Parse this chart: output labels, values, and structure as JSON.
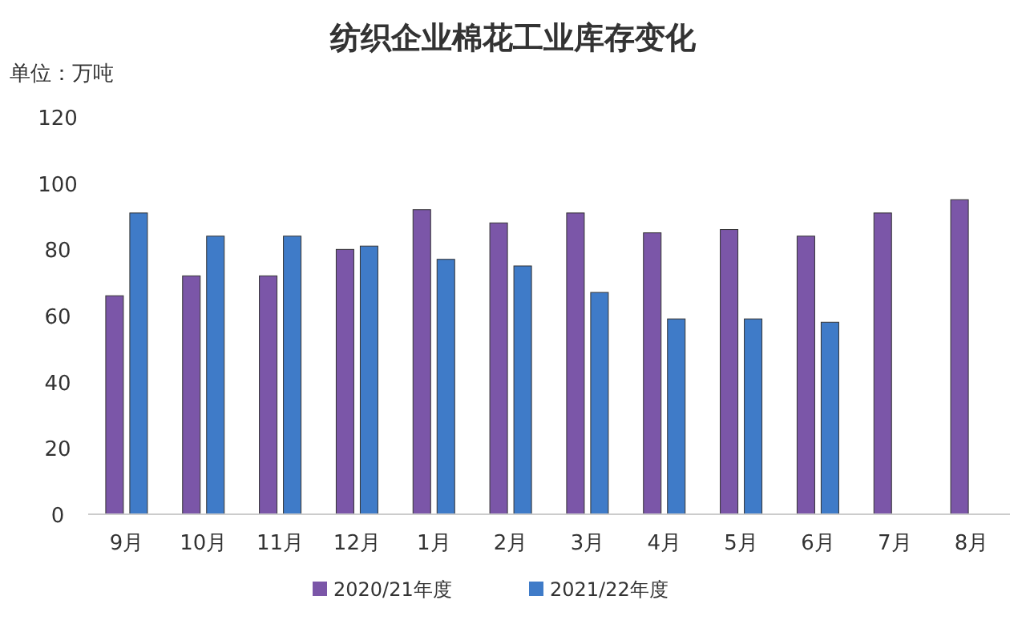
{
  "chart_data": {
    "type": "bar",
    "title": "纺织企业棉花工业库存变化",
    "ylabel": "单位：万吨",
    "categories": [
      "9月",
      "10月",
      "11月",
      "12月",
      "1月",
      "2月",
      "3月",
      "4月",
      "5月",
      "6月",
      "7月",
      "8月"
    ],
    "series": [
      {
        "name": "2020/21年度",
        "color": "#7b56a8",
        "values": [
          66,
          72,
          72,
          80,
          92,
          88,
          91,
          85,
          86,
          84,
          91,
          95
        ]
      },
      {
        "name": "2021/22年度",
        "color": "#3f7bc8",
        "values": [
          91,
          84,
          84,
          81,
          77,
          75,
          67,
          59,
          59,
          58,
          null,
          null
        ]
      }
    ],
    "ylim": [
      0,
      120
    ],
    "yticks": [
      0,
      20,
      40,
      60,
      80,
      100,
      120
    ],
    "grid": false,
    "legend": "bottom"
  }
}
